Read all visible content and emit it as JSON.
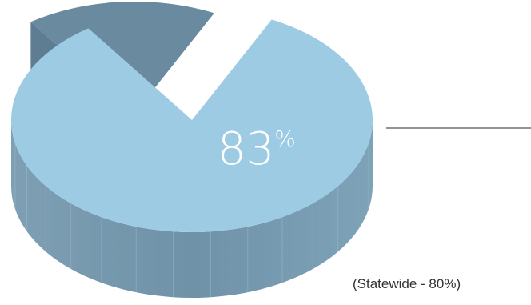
{
  "chart_data": {
    "type": "pie",
    "style": "3d-exploded",
    "slices": [
      {
        "value": 83,
        "color": "#9ccbe3"
      },
      {
        "value": 17,
        "color": "#6a8aa0"
      }
    ],
    "label": {
      "number": "83",
      "unit": "%"
    },
    "annotation": "(Statewide - 80%)"
  }
}
